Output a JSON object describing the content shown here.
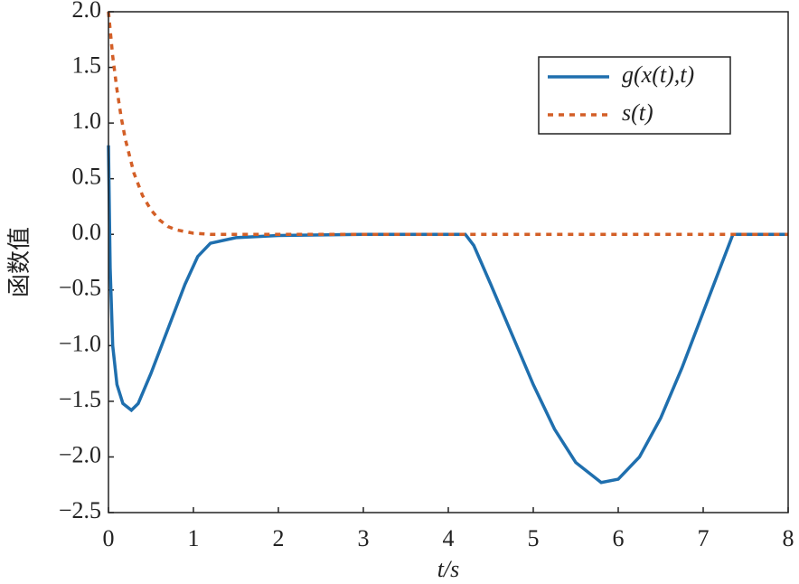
{
  "chart_data": {
    "type": "line",
    "xlabel": "t/s",
    "ylabel": "函数值",
    "xlim": [
      0,
      8
    ],
    "xticks": [
      0,
      1,
      2,
      3,
      4,
      5,
      6,
      7,
      8
    ],
    "ylim": [
      -2.5,
      2.0
    ],
    "yticks": [
      {
        "value": -2.5,
        "label": "−2.5"
      },
      {
        "value": -2.0,
        "label": "−2.0"
      },
      {
        "value": -1.5,
        "label": "−1.5"
      },
      {
        "value": -1.0,
        "label": "−1.0"
      },
      {
        "value": -0.5,
        "label": "−0.5"
      },
      {
        "value": 0.0,
        "label": "0.0"
      },
      0.5,
      {
        "value": 1.0,
        "label": "1.0"
      },
      1.5,
      {
        "value": 2.0,
        "label": "2.0"
      }
    ],
    "legend": "upper right",
    "series": [
      {
        "name": "g(x(t),t)",
        "color": "#1f6fae",
        "style": "solid",
        "x": [
          0,
          0.02,
          0.05,
          0.1,
          0.17,
          0.27,
          0.35,
          0.5,
          0.7,
          0.9,
          1.05,
          1.2,
          1.5,
          2,
          3,
          4.2,
          4.3,
          4.5,
          4.75,
          5,
          5.25,
          5.5,
          5.8,
          6,
          6.25,
          6.5,
          6.75,
          7,
          7.2,
          7.35,
          8
        ],
        "values": [
          0.8,
          -0.3,
          -1.0,
          -1.35,
          -1.52,
          -1.58,
          -1.52,
          -1.25,
          -0.85,
          -0.45,
          -0.2,
          -0.08,
          -0.03,
          -0.01,
          0,
          0,
          -0.1,
          -0.45,
          -0.9,
          -1.35,
          -1.75,
          -2.05,
          -2.23,
          -2.2,
          -2.0,
          -1.65,
          -1.2,
          -0.7,
          -0.3,
          0,
          0
        ]
      },
      {
        "name": "s(t)",
        "color": "#d35f27",
        "style": "dashed",
        "x": [
          0,
          0.05,
          0.1,
          0.15,
          0.2,
          0.3,
          0.4,
          0.5,
          0.6,
          0.7,
          0.8,
          1.0,
          1.2,
          8
        ],
        "values": [
          2.0,
          1.6,
          1.3,
          1.05,
          0.85,
          0.55,
          0.35,
          0.22,
          0.13,
          0.07,
          0.04,
          0.01,
          0,
          0
        ]
      }
    ]
  }
}
